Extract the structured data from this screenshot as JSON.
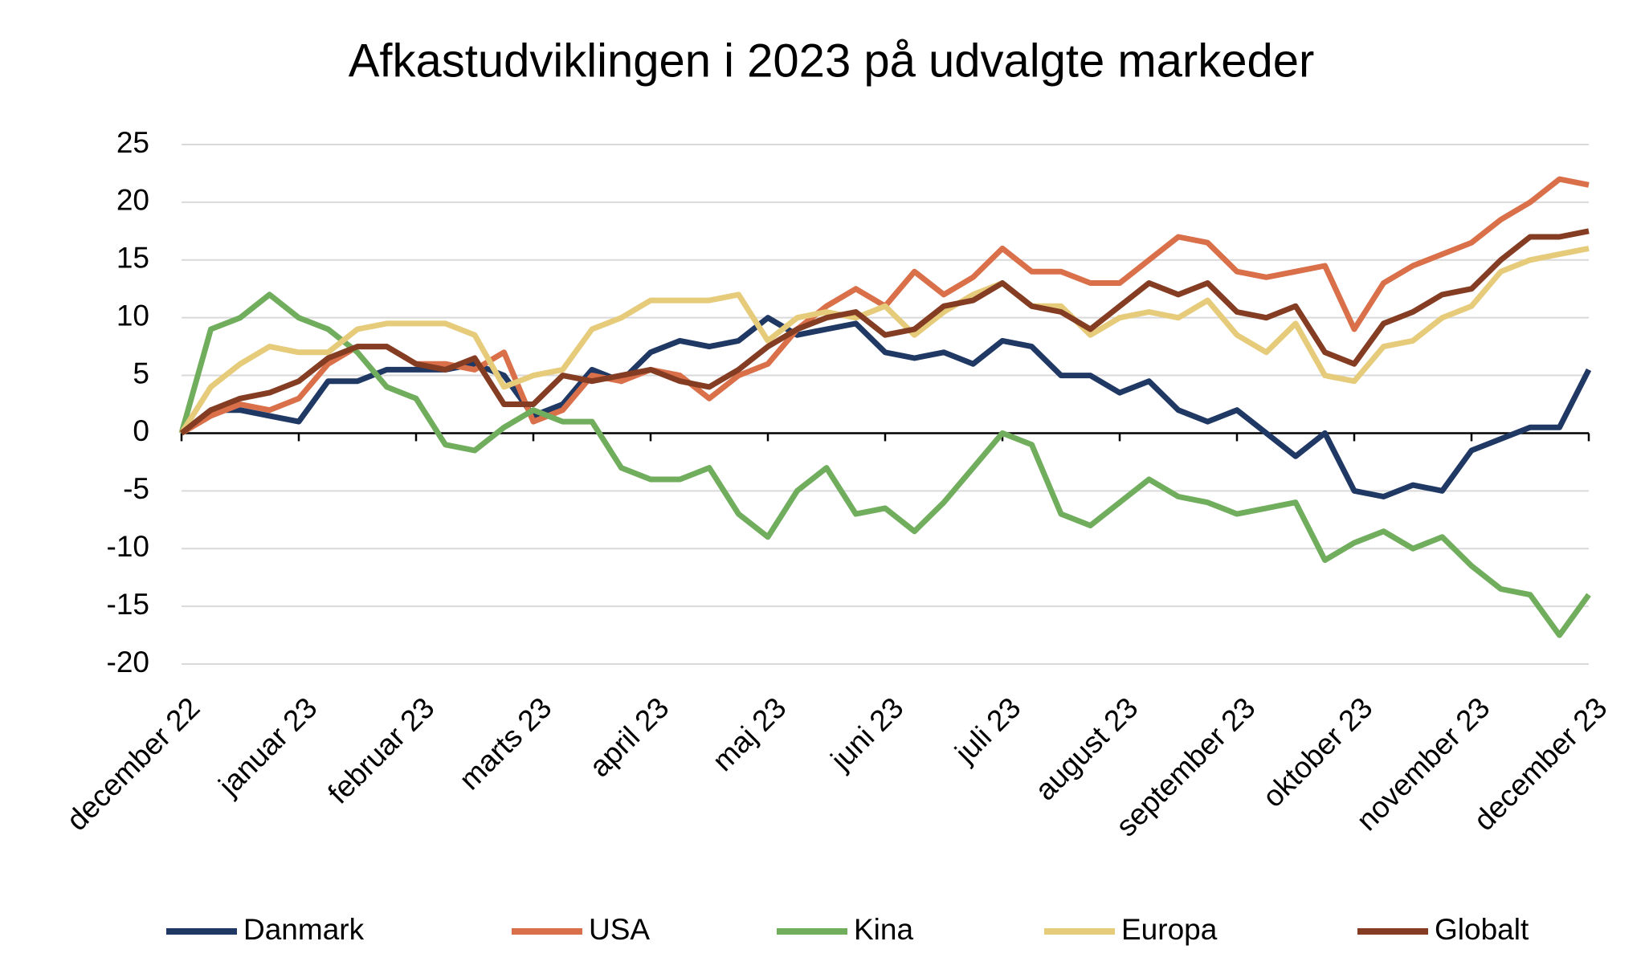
{
  "chart_data": {
    "type": "line",
    "title": "Afkastudviklingen i 2023 på udvalgte markeder",
    "x": [
      0,
      0.25,
      0.5,
      0.75,
      1,
      1.25,
      1.5,
      1.75,
      2,
      2.25,
      2.5,
      2.75,
      3,
      3.25,
      3.5,
      3.75,
      4,
      4.25,
      4.5,
      4.75,
      5,
      5.25,
      5.5,
      5.75,
      6,
      6.25,
      6.5,
      6.75,
      7,
      7.25,
      7.5,
      7.75,
      8,
      8.25,
      8.5,
      8.75,
      9,
      9.25,
      9.5,
      9.75,
      10,
      10.25,
      10.5,
      10.75,
      11,
      11.25,
      11.5,
      11.75,
      12
    ],
    "series": [
      {
        "name": "Danmark",
        "color": "#203864",
        "values": [
          0,
          2,
          2,
          1.5,
          1,
          4.5,
          4.5,
          5.5,
          5.5,
          5.5,
          6,
          5,
          1.5,
          2.5,
          5.5,
          4.5,
          7,
          8,
          7.5,
          8,
          10,
          8.5,
          9,
          9.5,
          7,
          6.5,
          7,
          6,
          8,
          7.5,
          5,
          5,
          3.5,
          4.5,
          2,
          1,
          2,
          0,
          -2,
          0,
          -5,
          -5.5,
          -4.5,
          -5,
          -1.5,
          -0.5,
          0.5,
          0.5,
          5.5
        ]
      },
      {
        "name": "USA",
        "color": "#d9704a",
        "values": [
          0,
          1.5,
          2.5,
          2,
          3,
          6,
          7.5,
          7.5,
          6,
          6,
          5.5,
          7,
          1,
          2,
          5,
          4.5,
          5.5,
          5,
          3,
          5,
          6,
          9,
          11,
          12.5,
          11,
          14,
          12,
          13.5,
          16,
          14,
          14,
          13,
          13,
          15,
          17,
          16.5,
          14,
          13.5,
          14,
          14.5,
          9,
          13,
          14.5,
          15.5,
          16.5,
          18.5,
          20,
          22,
          21.5
        ]
      },
      {
        "name": "Kina",
        "color": "#70ad5c",
        "values": [
          0,
          9,
          10,
          12,
          10,
          9,
          7,
          4,
          3,
          -1,
          -1.5,
          0.5,
          2,
          1,
          1,
          -3,
          -4,
          -4,
          -3,
          -7,
          -9,
          -5,
          -3,
          -7,
          -6.5,
          -8.5,
          -6,
          -3,
          0,
          -1,
          -7,
          -8,
          -6,
          -4,
          -5.5,
          -6,
          -7,
          -6.5,
          -6,
          -11,
          -9.5,
          -8.5,
          -10,
          -9,
          -11.5,
          -13.5,
          -14,
          -17.5,
          -14
        ]
      },
      {
        "name": "Europa",
        "color": "#e5cb7a",
        "values": [
          0,
          4,
          6,
          7.5,
          7,
          7,
          9,
          9.5,
          9.5,
          9.5,
          8.5,
          4,
          5,
          5.5,
          9,
          10,
          11.5,
          11.5,
          11.5,
          12,
          8,
          10,
          10.5,
          10,
          11,
          8.5,
          10.5,
          12,
          13,
          11,
          11,
          8.5,
          10,
          10.5,
          10,
          11.5,
          8.5,
          7,
          9.5,
          5,
          4.5,
          7.5,
          8,
          10,
          11,
          14,
          15,
          15.5,
          16
        ]
      },
      {
        "name": "Globalt",
        "color": "#843c22",
        "values": [
          0,
          2,
          3,
          3.5,
          4.5,
          6.5,
          7.5,
          7.5,
          6,
          5.5,
          6.5,
          2.5,
          2.5,
          5,
          4.5,
          5,
          5.5,
          4.5,
          4,
          5.5,
          7.5,
          9,
          10,
          10.5,
          8.5,
          9,
          11,
          11.5,
          13,
          11,
          10.5,
          9,
          11,
          13,
          12,
          13,
          10.5,
          10,
          11,
          7,
          6,
          9.5,
          10.5,
          12,
          12.5,
          15,
          17,
          17,
          17.5
        ]
      }
    ],
    "xlim": [
      0,
      12
    ],
    "xticks": [
      {
        "value": 0,
        "label": "december 22"
      },
      {
        "value": 1,
        "label": "januar 23"
      },
      {
        "value": 2,
        "label": "februar 23"
      },
      {
        "value": 3,
        "label": "marts 23"
      },
      {
        "value": 4,
        "label": "april 23"
      },
      {
        "value": 5,
        "label": "maj 23"
      },
      {
        "value": 6,
        "label": "juni 23"
      },
      {
        "value": 7,
        "label": "juli 23"
      },
      {
        "value": 8,
        "label": "august 23"
      },
      {
        "value": 9,
        "label": "september 23"
      },
      {
        "value": 10,
        "label": "oktober 23"
      },
      {
        "value": 11,
        "label": "november 23"
      },
      {
        "value": 12,
        "label": "december 23"
      }
    ],
    "ylim": [
      -20,
      25
    ],
    "yticks": [
      -20,
      -15,
      -10,
      -5,
      0,
      5,
      10,
      15,
      20,
      25
    ],
    "grid": true,
    "legend": "bottom"
  }
}
